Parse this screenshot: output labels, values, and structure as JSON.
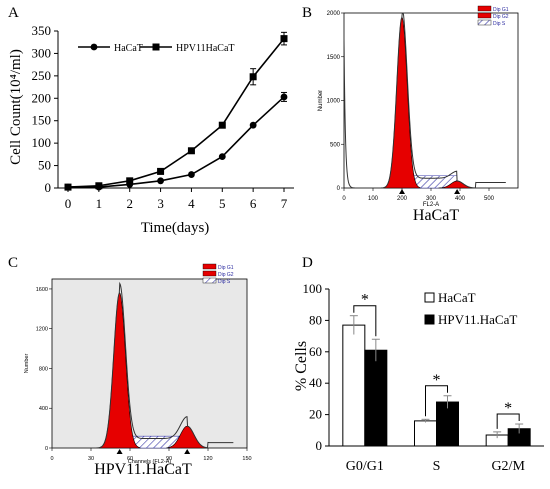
{
  "panels": {
    "A": {
      "letter": "A",
      "chart_data": {
        "type": "line",
        "x": [
          0,
          1,
          2,
          3,
          4,
          5,
          6,
          7
        ],
        "series": [
          {
            "name": "HaCaT",
            "values": [
              2,
              2,
              8,
              16,
              30,
              70,
              140,
              203
            ],
            "errors": [
              0,
              0,
              0,
              0,
              0,
              0,
              0,
              10
            ],
            "marker": "circle"
          },
          {
            "name": "HPV11HaCaT",
            "values": [
              2,
              5,
              16,
              37,
              83,
              140,
              248,
              333
            ],
            "errors": [
              0,
              0,
              0,
              0,
              0,
              0,
              18,
              14
            ],
            "marker": "square"
          }
        ],
        "xlabel": "Time(days)",
        "ylabel": "Cell Count(10⁴/ml)",
        "xlim": [
          0,
          7
        ],
        "ylim": [
          0,
          350
        ],
        "xticks": [
          "0",
          "1",
          "2",
          "3",
          "4",
          "5",
          "6",
          "7"
        ],
        "yticks": [
          "0",
          "50",
          "100",
          "150",
          "200",
          "250",
          "300",
          "350"
        ],
        "grid": false,
        "legend": "top-left"
      }
    },
    "B": {
      "letter": "B",
      "chart_data": {
        "type": "area",
        "title": "HaCaT",
        "xlabel": "FL2-A",
        "ylabel": "Number",
        "xticks": [
          "0",
          "100",
          "200",
          "300",
          "400",
          "500"
        ],
        "yticks": [
          "0",
          "500",
          "1000",
          "1500",
          "2000"
        ],
        "xlim": [
          0,
          600
        ],
        "ylim": [
          0,
          2000
        ],
        "legend_items": [
          "Dip G1",
          "Dip G2",
          "Dip S"
        ],
        "peaks": [
          {
            "phase": "G1",
            "center": 200,
            "height": 1950
          },
          {
            "phase": "G2",
            "center": 390,
            "height": 80
          }
        ]
      }
    },
    "C": {
      "letter": "C",
      "chart_data": {
        "type": "area",
        "title": "HPV11.HaCaT",
        "xlabel": "Channels (FL2-A)",
        "ylabel": "Number",
        "xticks": [
          "0",
          "30",
          "60",
          "90",
          "120",
          "150"
        ],
        "yticks": [
          "0",
          "400",
          "800",
          "1200",
          "1600"
        ],
        "xlim": [
          0,
          150
        ],
        "ylim": [
          0,
          1700
        ],
        "legend_items": [
          "Dip G1",
          "Dip G2",
          "Dip S"
        ],
        "peaks": [
          {
            "phase": "G1",
            "center": 52,
            "height": 1560
          },
          {
            "phase": "G2",
            "center": 104,
            "height": 220
          }
        ]
      }
    },
    "D": {
      "letter": "D",
      "chart_data": {
        "type": "bar",
        "categories": [
          "G0/G1",
          "S",
          "G2/M"
        ],
        "series": [
          {
            "name": "HaCaT",
            "values": [
              77,
              16,
              7
            ],
            "errors": [
              6,
              1,
              2
            ],
            "color": "#ffffff"
          },
          {
            "name": "HPV11.HaCaT",
            "values": [
              61,
              28,
              11
            ],
            "errors": [
              7,
              4,
              3
            ],
            "color": "#000000"
          }
        ],
        "ylabel": "% Cells",
        "ylim": [
          0,
          100
        ],
        "yticks": [
          "0",
          "20",
          "40",
          "60",
          "80",
          "100"
        ],
        "significance": [
          "*",
          "*",
          "*"
        ],
        "legend": "top-right"
      }
    }
  },
  "colors": {
    "g1": "#e60000",
    "g2": "#e60000",
    "s_hatch": "#3a3aa8",
    "line": "#000000"
  }
}
